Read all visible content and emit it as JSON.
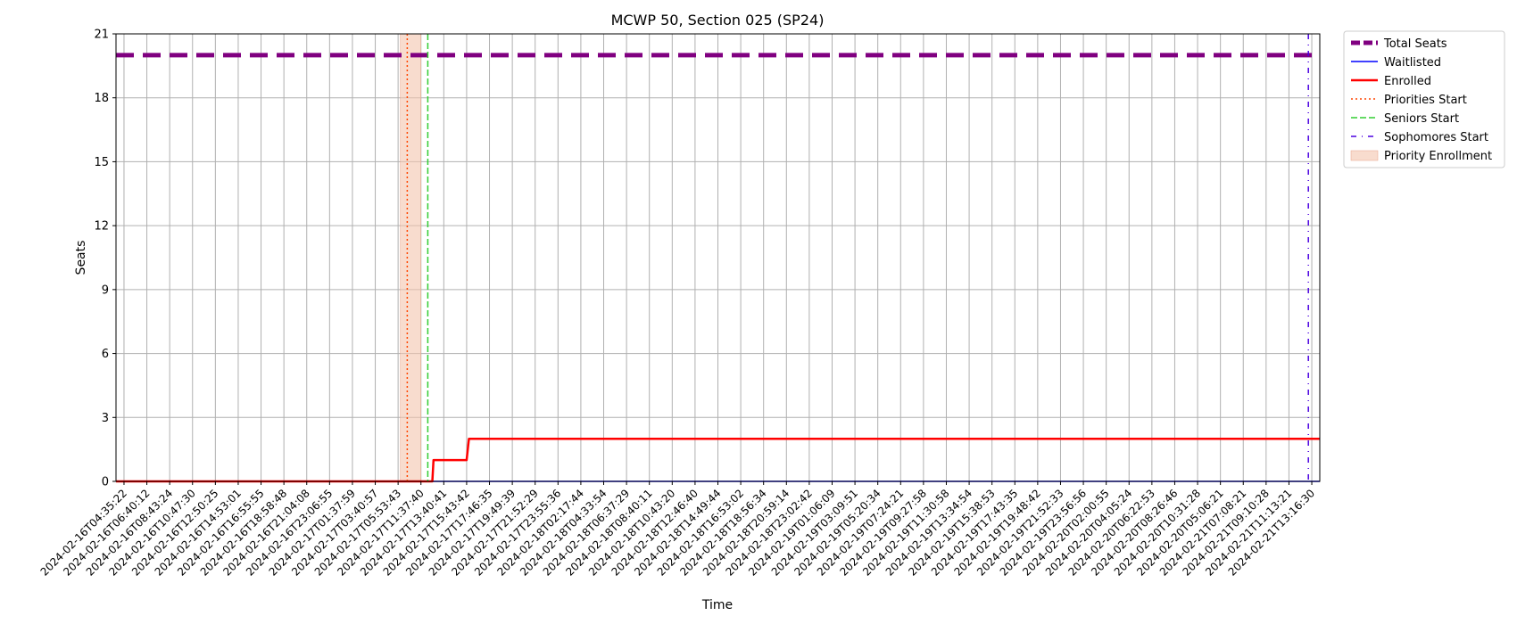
{
  "chart_data": {
    "type": "line",
    "title": "MCWP 50, Section 025 (SP24)",
    "xlabel": "Time",
    "ylabel": "Seats",
    "ylim": [
      0,
      21
    ],
    "yticks": [
      0,
      3,
      6,
      9,
      12,
      15,
      18,
      21
    ],
    "grid": true,
    "legend_position": "outside-top-right",
    "x_ticks": [
      "2024-02-16T04:35:22",
      "2024-02-16T06:40:12",
      "2024-02-16T08:43:24",
      "2024-02-16T10:47:30",
      "2024-02-16T12:50:25",
      "2024-02-16T14:53:01",
      "2024-02-16T16:55:55",
      "2024-02-16T18:58:48",
      "2024-02-16T21:04:08",
      "2024-02-16T23:06:55",
      "2024-02-17T01:37:59",
      "2024-02-17T03:40:57",
      "2024-02-17T05:53:43",
      "2024-02-17T11:37:40",
      "2024-02-17T13:40:41",
      "2024-02-17T15:43:42",
      "2024-02-17T17:46:35",
      "2024-02-17T19:49:39",
      "2024-02-17T21:52:29",
      "2024-02-17T23:55:36",
      "2024-02-18T02:17:44",
      "2024-02-18T04:33:54",
      "2024-02-18T06:37:29",
      "2024-02-18T08:40:11",
      "2024-02-18T10:43:20",
      "2024-02-18T12:46:40",
      "2024-02-18T14:49:44",
      "2024-02-18T16:53:02",
      "2024-02-18T18:56:34",
      "2024-02-18T20:59:14",
      "2024-02-18T23:02:42",
      "2024-02-19T01:06:09",
      "2024-02-19T03:09:51",
      "2024-02-19T05:20:34",
      "2024-02-19T07:24:21",
      "2024-02-19T09:27:58",
      "2024-02-19T11:30:58",
      "2024-02-19T13:34:54",
      "2024-02-19T15:38:53",
      "2024-02-19T17:43:35",
      "2024-02-19T19:48:42",
      "2024-02-19T21:52:33",
      "2024-02-19T23:56:56",
      "2024-02-20T02:00:55",
      "2024-02-20T04:05:24",
      "2024-02-20T06:22:53",
      "2024-02-20T08:26:46",
      "2024-02-20T10:31:28",
      "2024-02-20T05:06:21",
      "2024-02-21T07:08:21",
      "2024-02-21T09:10:28",
      "2024-02-21T11:13:21",
      "2024-02-21T13:16:30"
    ],
    "x_range": [
      -0.35,
      52.35
    ],
    "series": [
      {
        "name": "Total Seats",
        "style": "dashed-thick",
        "color": "#800080",
        "points": [
          [
            -0.35,
            20
          ],
          [
            52.35,
            20
          ]
        ]
      },
      {
        "name": "Waitlisted",
        "style": "solid",
        "color": "#0000ff",
        "points": [
          [
            -0.35,
            0
          ],
          [
            52.35,
            0
          ]
        ]
      },
      {
        "name": "Enrolled",
        "style": "solid",
        "color": "#ff0000",
        "points": [
          [
            -0.35,
            0
          ],
          [
            13.5,
            0
          ],
          [
            13.55,
            1
          ],
          [
            15.0,
            1
          ],
          [
            15.1,
            2
          ],
          [
            52.35,
            2
          ]
        ]
      }
    ],
    "vlines": [
      {
        "name": "Priorities Start",
        "x": 12.4,
        "style": "dotted",
        "color": "#ff4500"
      },
      {
        "name": "Seniors Start",
        "x": 13.3,
        "style": "dashed",
        "color": "#32cd32"
      },
      {
        "name": "Sophomores Start",
        "x": 51.85,
        "style": "dashdot-sparse",
        "color": "#4b00e0"
      }
    ],
    "span": {
      "name": "Priority Enrollment",
      "x0": 12.1,
      "x1": 13.0,
      "color": "#f4c4ae"
    },
    "legend": [
      "Total Seats",
      "Waitlisted",
      "Enrolled",
      "Priorities Start",
      "Seniors Start",
      "Sophomores Start",
      "Priority Enrollment"
    ]
  }
}
